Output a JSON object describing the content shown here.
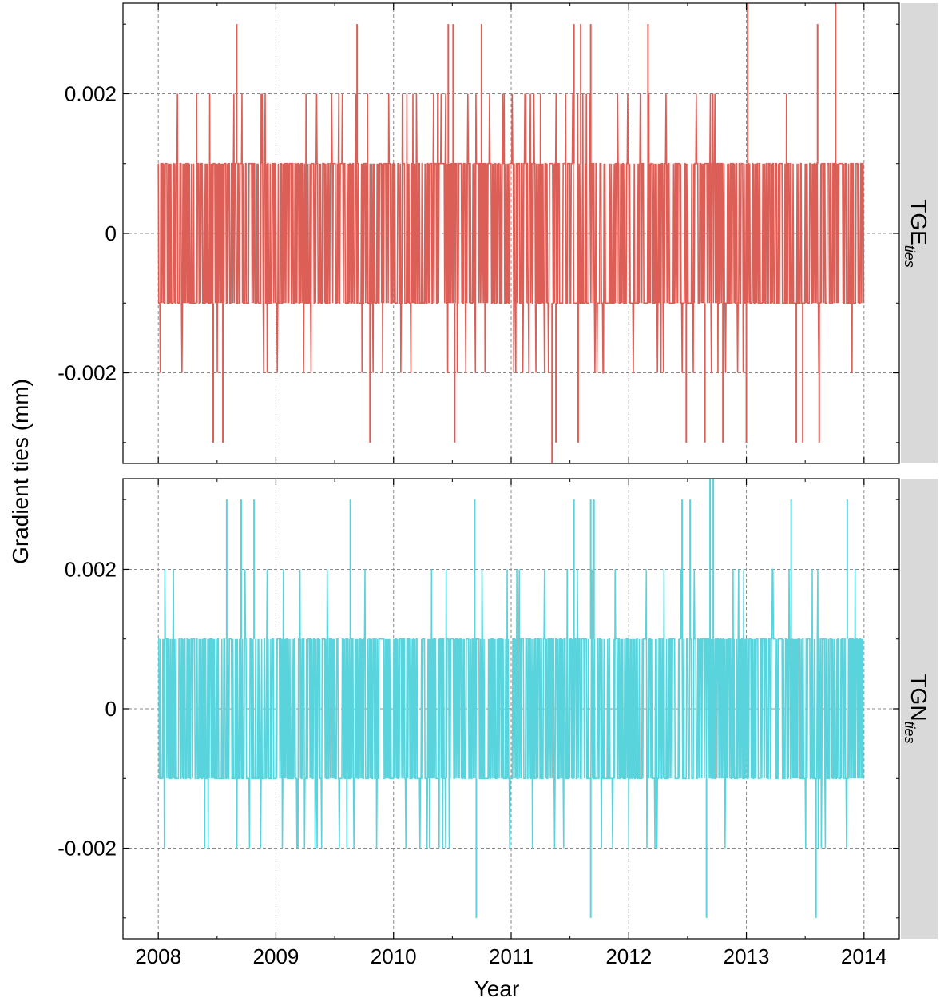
{
  "chart_data": {
    "type": "line",
    "facets": "vertical",
    "ylabel": "Gradient ties (mm)",
    "xlabel": "Year",
    "x_ticks": [
      "2008",
      "2009",
      "2010",
      "2011",
      "2012",
      "2013",
      "2014"
    ],
    "x_range": [
      2007.7,
      2014.3
    ],
    "ylim": [
      -0.0033,
      0.0033
    ],
    "y_ticks": [
      {
        "value": 0.002,
        "label": "0.002"
      },
      {
        "value": 0,
        "label": "0"
      },
      {
        "value": -0.002,
        "label": "-0.002"
      }
    ],
    "grid": true,
    "grid_style": "dashed",
    "series": [
      {
        "strip_main": "TGE",
        "strip_sub": "ties",
        "color": "#dc5f57",
        "date_range": [
          "2008-01-01",
          "2013-12-31"
        ],
        "core_band": [
          -0.001,
          0.001
        ],
        "typical_extremes": [
          -0.002,
          0.002
        ],
        "spikes": [
          {
            "x": "2008-09-01",
            "y": 0.003
          },
          {
            "x": "2009-09-10",
            "y": 0.003
          },
          {
            "x": "2010-06-20",
            "y": 0.003
          },
          {
            "x": "2010-07-05",
            "y": 0.003
          },
          {
            "x": "2010-10-01",
            "y": 0.003
          },
          {
            "x": "2011-07-15",
            "y": 0.003
          },
          {
            "x": "2011-08-05",
            "y": 0.003
          },
          {
            "x": "2011-09-05",
            "y": 0.003
          },
          {
            "x": "2012-03-01",
            "y": 0.003
          },
          {
            "x": "2013-01-05",
            "y": 0.0035
          },
          {
            "x": "2013-08-10",
            "y": 0.003
          },
          {
            "x": "2013-10-05",
            "y": 0.0035
          },
          {
            "x": "2008-06-20",
            "y": -0.003
          },
          {
            "x": "2008-07-20",
            "y": -0.003
          },
          {
            "x": "2009-10-20",
            "y": -0.003
          },
          {
            "x": "2010-07-10",
            "y": -0.003
          },
          {
            "x": "2011-05-08",
            "y": -0.0035
          },
          {
            "x": "2011-05-20",
            "y": -0.003
          },
          {
            "x": "2011-07-28",
            "y": -0.003
          },
          {
            "x": "2012-06-28",
            "y": -0.003
          },
          {
            "x": "2012-08-25",
            "y": -0.003
          },
          {
            "x": "2012-10-20",
            "y": -0.003
          },
          {
            "x": "2013-01-01",
            "y": -0.003
          },
          {
            "x": "2013-06-05",
            "y": -0.003
          },
          {
            "x": "2013-06-25",
            "y": -0.003
          },
          {
            "x": "2013-08-15",
            "y": -0.003
          }
        ]
      },
      {
        "strip_main": "TGN",
        "strip_sub": "ties",
        "color": "#5ad4dc",
        "date_range": [
          "2008-01-01",
          "2013-12-31"
        ],
        "core_band": [
          -0.001,
          0.001
        ],
        "typical_extremes": [
          -0.002,
          0.002
        ],
        "spikes": [
          {
            "x": "2008-08-01",
            "y": 0.003
          },
          {
            "x": "2008-09-15",
            "y": 0.003
          },
          {
            "x": "2008-10-25",
            "y": 0.003
          },
          {
            "x": "2009-08-20",
            "y": 0.003
          },
          {
            "x": "2010-09-10",
            "y": 0.003
          },
          {
            "x": "2011-07-15",
            "y": 0.003
          },
          {
            "x": "2011-09-05",
            "y": 0.003
          },
          {
            "x": "2011-09-15",
            "y": 0.003
          },
          {
            "x": "2012-06-15",
            "y": 0.003
          },
          {
            "x": "2012-07-10",
            "y": 0.003
          },
          {
            "x": "2012-09-10",
            "y": 0.0035
          },
          {
            "x": "2012-09-20",
            "y": 0.0035
          },
          {
            "x": "2013-05-20",
            "y": 0.003
          },
          {
            "x": "2013-11-10",
            "y": 0.003
          },
          {
            "x": "2010-09-15",
            "y": -0.003
          },
          {
            "x": "2011-09-05",
            "y": -0.003
          },
          {
            "x": "2012-08-30",
            "y": -0.003
          },
          {
            "x": "2013-08-05",
            "y": -0.003
          }
        ]
      }
    ]
  }
}
